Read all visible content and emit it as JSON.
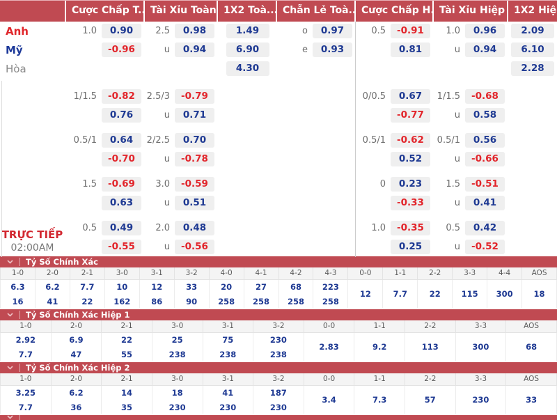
{
  "colors": {
    "bar_red": "#c04a52",
    "value_blue": "#1f3a93",
    "value_red": "#e2252b",
    "team_red": "#e0262b",
    "team_blue": "#1e3a9a",
    "team_gray": "#8a8a8a",
    "cell_bg": "#efefef"
  },
  "odds_board": {
    "column_headers": [
      "Cược Chấp T...",
      "Tài Xỉu Toàn ...",
      "1X2 Toà...",
      "Chẵn Lẻ Toà...",
      "Cược Chấp H...",
      "Tài Xỉu Hiệp 1",
      "1X2 Hiệ..."
    ],
    "live": {
      "label": "TRỰC TIẾP",
      "time": "02:00AM"
    },
    "rows": [
      {
        "team": "Anh",
        "team_style": "red",
        "cells": [
          {
            "l": "1.0",
            "v": "0.90"
          },
          {
            "l": "2.5",
            "v": "0.98"
          },
          {
            "v": "1.49"
          },
          {
            "l": "o",
            "v": "0.97"
          },
          {
            "l": "0.5",
            "v": "-0.91"
          },
          {
            "l": "1.0",
            "v": "0.96"
          },
          {
            "v": "2.09"
          }
        ]
      },
      {
        "team": "Mỹ",
        "team_style": "blue",
        "cells": [
          {
            "v": "-0.96"
          },
          {
            "l": "u",
            "v": "0.94"
          },
          {
            "v": "6.90"
          },
          {
            "l": "e",
            "v": "0.93"
          },
          {
            "v": "0.81"
          },
          {
            "l": "u",
            "v": "0.94"
          },
          {
            "v": "6.10"
          }
        ]
      },
      {
        "team": "Hòa",
        "team_style": "gray",
        "gap_after": 13,
        "cells": [
          null,
          null,
          {
            "v": "4.30"
          },
          null,
          null,
          null,
          {
            "v": "2.28"
          }
        ]
      },
      {
        "cells": [
          {
            "l": "1/1.5",
            "v": "-0.82"
          },
          {
            "l": "2.5/3",
            "v": "-0.79"
          },
          null,
          null,
          {
            "l": "0/0.5",
            "v": "0.67"
          },
          {
            "l": "1/1.5",
            "v": "-0.68"
          },
          null
        ]
      },
      {
        "gap_after": 9,
        "cells": [
          {
            "v": "0.76"
          },
          {
            "l": "u",
            "v": "0.71"
          },
          null,
          null,
          {
            "v": "-0.77"
          },
          {
            "l": "u",
            "v": "0.58"
          },
          null
        ]
      },
      {
        "cells": [
          {
            "l": "0.5/1",
            "v": "0.64"
          },
          {
            "l": "2/2.5",
            "v": "0.70"
          },
          null,
          null,
          {
            "l": "0.5/1",
            "v": "-0.62"
          },
          {
            "l": "0.5/1",
            "v": "0.56"
          },
          null
        ]
      },
      {
        "gap_after": 9,
        "cells": [
          {
            "v": "-0.70"
          },
          {
            "l": "u",
            "v": "-0.78"
          },
          null,
          null,
          {
            "v": "0.52"
          },
          {
            "l": "u",
            "v": "-0.66"
          },
          null
        ]
      },
      {
        "cells": [
          {
            "l": "1.5",
            "v": "-0.69"
          },
          {
            "l": "3.0",
            "v": "-0.59"
          },
          null,
          null,
          {
            "l": "0",
            "v": "0.23"
          },
          {
            "l": "1.5",
            "v": "-0.51"
          },
          null
        ]
      },
      {
        "gap_after": 9,
        "cells": [
          {
            "v": "0.63"
          },
          {
            "l": "u",
            "v": "0.51"
          },
          null,
          null,
          {
            "v": "-0.33"
          },
          {
            "l": "u",
            "v": "0.41"
          },
          null
        ]
      },
      {
        "cells": [
          {
            "l": "0.5",
            "v": "0.49"
          },
          {
            "l": "2.0",
            "v": "0.48"
          },
          null,
          null,
          {
            "l": "1.0",
            "v": "-0.35"
          },
          {
            "l": "0.5",
            "v": "0.42"
          },
          null
        ]
      },
      {
        "cells": [
          {
            "v": "-0.55"
          },
          {
            "l": "u",
            "v": "-0.56"
          },
          null,
          null,
          {
            "v": "0.25"
          },
          {
            "l": "u",
            "v": "-0.52"
          },
          null
        ]
      }
    ]
  },
  "score_sections": [
    {
      "title": "Tỷ Số Chính Xác",
      "headers": [
        "1-0",
        "2-0",
        "2-1",
        "3-0",
        "3-1",
        "3-2",
        "4-0",
        "4-1",
        "4-2",
        "4-3",
        "0-0",
        "1-1",
        "2-2",
        "3-3",
        "4-4",
        "AOS"
      ],
      "row1": [
        "6.3",
        "6.2",
        "7.7",
        "10",
        "12",
        "33",
        "20",
        "27",
        "68",
        "223"
      ],
      "row2": [
        "16",
        "41",
        "22",
        "162",
        "86",
        "90",
        "258",
        "258",
        "258",
        "258"
      ],
      "merged": [
        "12",
        "7.7",
        "22",
        "115",
        "300",
        "18"
      ]
    },
    {
      "title": "Tỷ Số Chính Xác Hiệp 1",
      "headers": [
        "1-0",
        "2-0",
        "2-1",
        "3-0",
        "3-1",
        "3-2",
        "0-0",
        "1-1",
        "2-2",
        "3-3",
        "AOS"
      ],
      "row1": [
        "2.92",
        "6.9",
        "22",
        "25",
        "75",
        "230"
      ],
      "row2": [
        "7.7",
        "47",
        "55",
        "238",
        "238",
        "238"
      ],
      "merged": [
        "2.83",
        "9.2",
        "113",
        "300",
        "68"
      ]
    },
    {
      "title": "Tỷ Số Chính Xác Hiệp 2",
      "headers": [
        "1-0",
        "2-0",
        "2-1",
        "3-0",
        "3-1",
        "3-2",
        "0-0",
        "1-1",
        "2-2",
        "3-3",
        "AOS"
      ],
      "row1": [
        "3.25",
        "6.2",
        "14",
        "18",
        "41",
        "187"
      ],
      "row2": [
        "7.7",
        "36",
        "35",
        "230",
        "230",
        "230"
      ],
      "merged": [
        "3.4",
        "7.3",
        "57",
        "230",
        "33"
      ]
    }
  ]
}
